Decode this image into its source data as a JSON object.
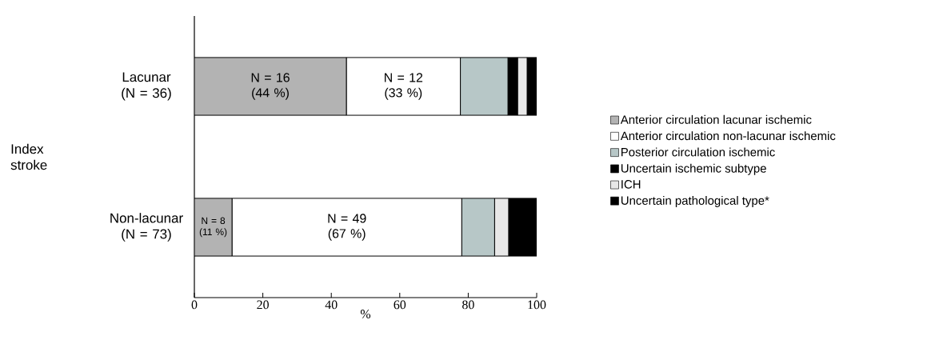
{
  "chart_data": {
    "type": "bar",
    "orientation": "horizontal",
    "stacked": true,
    "categories": [
      "Lacunar (N = 36)",
      "Non-lacunar (N = 73)"
    ],
    "ylabel": "Index stroke",
    "xlabel": "%",
    "xlim": [
      0,
      100
    ],
    "xticks": [
      0,
      20,
      40,
      60,
      80,
      100
    ],
    "legend": "right",
    "grid": false,
    "series": [
      {
        "name": "Anterior circulation lacunar ischemic",
        "color": "#b3b3b3",
        "values": [
          44.4,
          11.0
        ],
        "value_labels": [
          "N = 16 (44 %)",
          "N = 8 (11 %)"
        ]
      },
      {
        "name": "Anterior circulation non-lacunar ischemic",
        "color": "#ffffff",
        "values": [
          33.3,
          67.1
        ],
        "value_labels": [
          "N = 12 (33 %)",
          "N = 49 (67 %)"
        ]
      },
      {
        "name": "Posterior circulation ischemic",
        "color": "#b7c7c7",
        "values": [
          13.9,
          9.6
        ]
      },
      {
        "name": "Uncertain ischemic subtype",
        "color": "#000000",
        "values": [
          2.8,
          0
        ]
      },
      {
        "name": "ICH",
        "color": "#e8e8e8",
        "values": [
          2.8,
          4.1
        ]
      },
      {
        "name": "Uncertain pathological type*",
        "color": "#000000",
        "values": [
          2.8,
          8.2
        ]
      }
    ]
  }
}
